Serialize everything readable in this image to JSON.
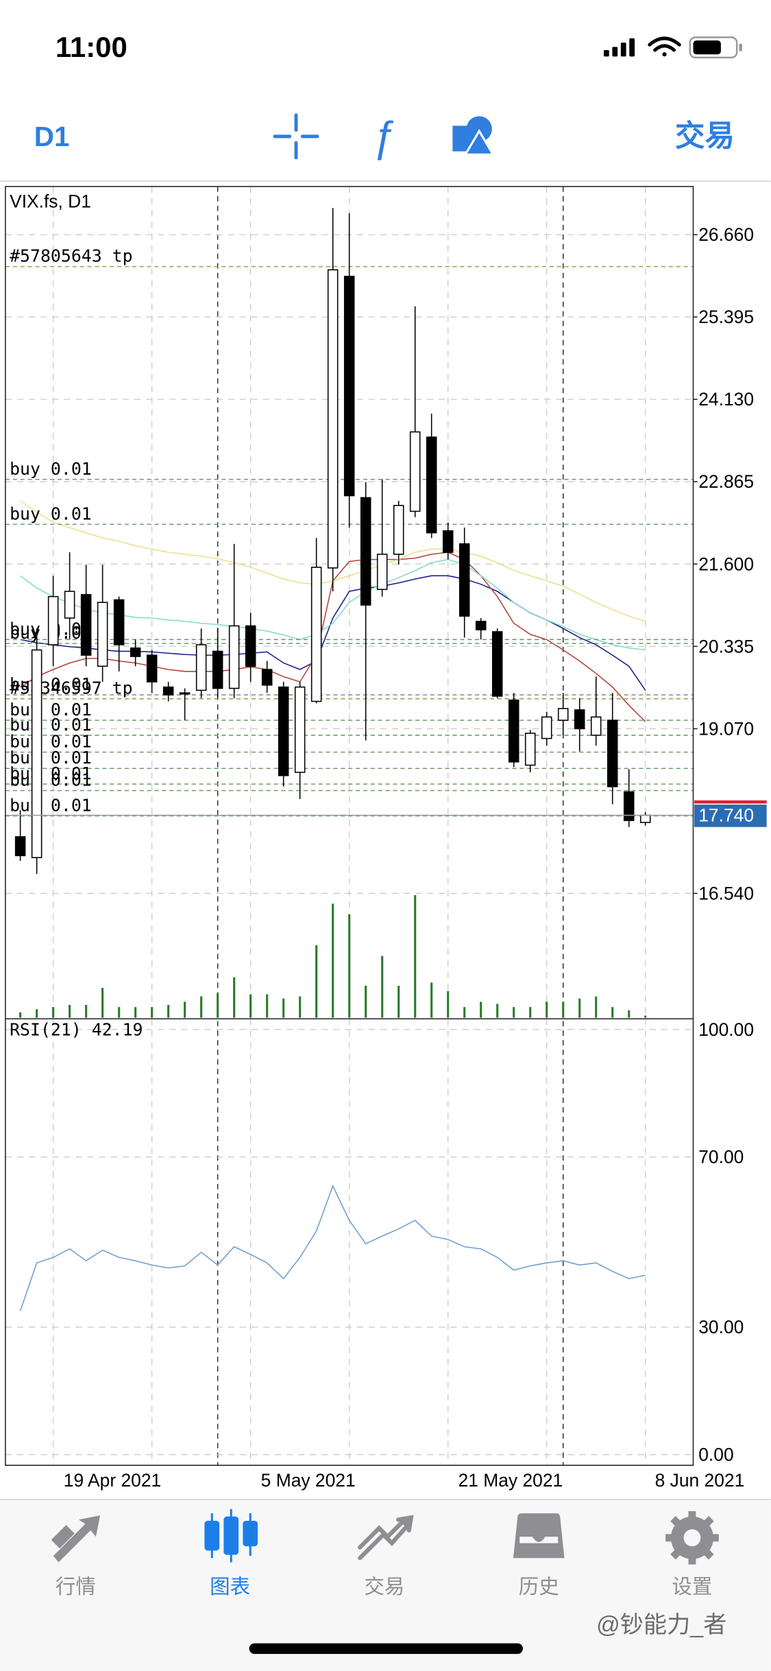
{
  "status_bar": {
    "time": "11:00"
  },
  "toolbar": {
    "timeframe": "D1",
    "trade": "交易"
  },
  "chart_data": {
    "type": "candlestick",
    "title": "VIX.fs, D1",
    "open": [
      17.41,
      17.09,
      20.36,
      20.77,
      21.13,
      20.03,
      21.05,
      20.31,
      20.2,
      19.71,
      19.61,
      19.66,
      20.26,
      19.69,
      20.65,
      19.98,
      19.71,
      18.4,
      19.49,
      21.54,
      26.02,
      22.62,
      21.21,
      21.75,
      22.41,
      23.55,
      22.11,
      21.91,
      20.72,
      20.56,
      19.51,
      18.51,
      18.92,
      19.2,
      19.36,
      18.97,
      19.2,
      18.1,
      17.63
    ],
    "high": [
      17.82,
      20.61,
      21.42,
      21.78,
      21.59,
      21.59,
      21.1,
      20.44,
      20.28,
      19.79,
      19.69,
      20.61,
      20.61,
      21.91,
      20.85,
      20.11,
      19.79,
      19.79,
      22.0,
      27.07,
      26.99,
      22.86,
      22.9,
      22.57,
      25.56,
      23.91,
      22.24,
      22.16,
      20.77,
      20.61,
      19.62,
      19.05,
      19.33,
      19.62,
      19.54,
      19.87,
      19.62,
      18.45,
      17.79
    ],
    "low": [
      17.04,
      16.84,
      20.03,
      20.44,
      20.03,
      19.79,
      19.95,
      20.03,
      19.62,
      19.49,
      19.2,
      19.54,
      19.54,
      19.54,
      19.79,
      19.62,
      18.18,
      17.99,
      19.46,
      21.18,
      22.16,
      18.89,
      21.1,
      21.59,
      22.32,
      22.0,
      21.67,
      20.47,
      20.44,
      19.54,
      18.48,
      18.4,
      18.81,
      18.97,
      18.72,
      18.81,
      17.91,
      17.56,
      17.58
    ],
    "close": [
      17.12,
      20.28,
      21.1,
      21.18,
      20.2,
      21.01,
      20.36,
      20.18,
      19.79,
      19.59,
      19.62,
      20.36,
      19.69,
      20.65,
      20.03,
      19.74,
      18.35,
      19.71,
      21.55,
      26.12,
      22.65,
      20.97,
      21.75,
      22.5,
      23.63,
      22.08,
      21.78,
      20.8,
      20.59,
      19.57,
      18.56,
      19.0,
      19.25,
      19.38,
      19.07,
      19.25,
      18.18,
      17.66,
      17.74
    ],
    "series": [
      {
        "color": "#1c1c8a",
        "values": [
          20.44,
          20.39,
          20.36,
          20.33,
          20.31,
          20.28,
          20.26,
          20.26,
          20.25,
          20.23,
          20.21,
          20.2,
          20.2,
          20.21,
          20.23,
          20.25,
          20.08,
          19.98,
          20.11,
          20.77,
          21.18,
          21.23,
          21.26,
          21.31,
          21.37,
          21.42,
          21.42,
          21.37,
          21.29,
          21.18,
          21.01,
          20.85,
          20.74,
          20.61,
          20.47,
          20.36,
          20.2,
          20.03,
          19.66
        ]
      },
      {
        "color": "#b0443a",
        "values": [
          19.71,
          19.87,
          19.98,
          20.08,
          20.15,
          20.15,
          20.11,
          20.08,
          20.03,
          19.98,
          19.95,
          19.95,
          19.95,
          19.98,
          20.02,
          19.98,
          19.87,
          19.79,
          20.2,
          21.34,
          21.64,
          21.67,
          21.67,
          21.67,
          21.69,
          21.75,
          21.78,
          21.67,
          21.42,
          21.1,
          20.69,
          20.52,
          20.44,
          20.28,
          20.11,
          19.92,
          19.71,
          19.43,
          19.18
        ]
      },
      {
        "color": "#86d8cf",
        "values": [
          21.42,
          21.23,
          21.1,
          21.0,
          20.9,
          20.85,
          20.82,
          20.78,
          20.77,
          20.74,
          20.72,
          20.69,
          20.67,
          20.64,
          20.61,
          20.57,
          20.51,
          20.44,
          20.52,
          20.69,
          21.01,
          21.18,
          21.29,
          21.39,
          21.5,
          21.62,
          21.67,
          21.59,
          21.42,
          21.23,
          21.01,
          20.85,
          20.74,
          20.64,
          20.52,
          20.44,
          20.36,
          20.31,
          20.28
        ]
      },
      {
        "color": "#ebe08a",
        "values": [
          22.57,
          22.4,
          22.24,
          22.16,
          22.08,
          22.0,
          21.95,
          21.88,
          21.83,
          21.78,
          21.75,
          21.72,
          21.68,
          21.62,
          21.55,
          21.46,
          21.37,
          21.31,
          21.29,
          21.34,
          21.42,
          21.5,
          21.59,
          21.67,
          21.78,
          21.83,
          21.83,
          21.78,
          21.72,
          21.62,
          21.5,
          21.42,
          21.34,
          21.26,
          21.14,
          21.01,
          20.9,
          20.8,
          20.72
        ]
      }
    ],
    "ylim": [
      14.63,
      27.4
    ],
    "yticks": [
      {
        "value": 26.66,
        "label": "26.660"
      },
      {
        "value": 25.395,
        "label": "25.395"
      },
      {
        "value": 24.13,
        "label": "24.130"
      },
      {
        "value": 22.865,
        "label": "22.865"
      },
      {
        "value": 21.6,
        "label": "21.600"
      },
      {
        "value": 20.335,
        "label": "20.335"
      },
      {
        "value": 19.07,
        "label": "19.070"
      },
      {
        "value": 16.54,
        "label": "16.540"
      }
    ],
    "xticks": [
      {
        "value": 5.6,
        "label": "19 Apr 2021"
      },
      {
        "value": 17.5,
        "label": "5 May 2021"
      },
      {
        "value": 29.8,
        "label": "21 May 2021"
      },
      {
        "value": 41.3,
        "label": "8 Jun 2021"
      }
    ],
    "last_price": {
      "value": 17.74,
      "label": "17.740"
    },
    "orders": [
      {
        "label": "#57805643 tp",
        "price": 26.17,
        "color": "#a8984a"
      },
      {
        "label": "buy 0.01",
        "price": 22.9,
        "color": "#6f9a6f"
      },
      {
        "label": "buy 0.01",
        "price": 22.21,
        "color": "#6f9a6f"
      },
      {
        "label": "buy 0.01",
        "price": 20.44,
        "color": "#6f9a6f"
      },
      {
        "label": "buy 0.01",
        "price": 20.38,
        "color": "#6f9a6f"
      },
      {
        "label": "buy 0.01",
        "price": 19.59,
        "color": "#6f9a6f"
      },
      {
        "label": "#58346597 tp",
        "price": 19.53,
        "color": "#a8984a"
      },
      {
        "label": "buy 0.01",
        "price": 19.2,
        "color": "#6f9a6f"
      },
      {
        "label": "buy 0.01",
        "price": 18.97,
        "color": "#6f9a6f"
      },
      {
        "label": "buy 0.01",
        "price": 18.71,
        "color": "#6f9a6f"
      },
      {
        "label": "buy 0.01",
        "price": 18.46,
        "color": "#6f9a6f"
      },
      {
        "label": "buy 0.01",
        "price": 18.22,
        "color": "#6f9a6f"
      },
      {
        "label": "buy 0.01",
        "price": 18.12,
        "color": "#6f9a6f"
      },
      {
        "label": "buy 0.01",
        "price": 17.73,
        "color": "#6f9a6f"
      }
    ],
    "volume": {
      "color": "#2c7a2c",
      "vlim": [
        0,
        120
      ],
      "values": [
        5,
        8,
        10,
        12,
        12,
        28,
        10,
        10,
        10,
        12,
        15,
        20,
        23,
        38,
        22,
        22,
        18,
        20,
        68,
        107,
        97,
        30,
        58,
        30,
        115,
        33,
        25,
        10,
        15,
        13,
        10,
        10,
        15,
        15,
        18,
        20,
        10,
        7,
        2
      ]
    },
    "rsi": {
      "label": "RSI(21) 42.19",
      "color": "#6d9fd2",
      "ylim": [
        0,
        100
      ],
      "yticks": [
        {
          "value": 100,
          "label": "100.00"
        },
        {
          "value": 70,
          "label": "70.00"
        },
        {
          "value": 30,
          "label": "30.00"
        },
        {
          "value": 0,
          "label": "0.00"
        }
      ],
      "values": [
        33.8,
        45.1,
        46.4,
        48.4,
        45.6,
        48.1,
        46.4,
        45.6,
        44.6,
        43.9,
        44.4,
        47.6,
        44.6,
        48.9,
        47.1,
        45.1,
        41.4,
        46.4,
        52.6,
        63.2,
        55.1,
        49.6,
        51.4,
        53.1,
        55.1,
        51.4,
        50.6,
        48.9,
        48.4,
        46.4,
        43.4,
        44.4,
        45.1,
        45.6,
        44.6,
        45.1,
        43.1,
        41.4,
        42.19
      ]
    }
  },
  "tab_bar": {
    "tabs": [
      "行情",
      "图表",
      "交易",
      "历史",
      "设置"
    ],
    "active": 1
  },
  "watermark": "@钞能力_者"
}
